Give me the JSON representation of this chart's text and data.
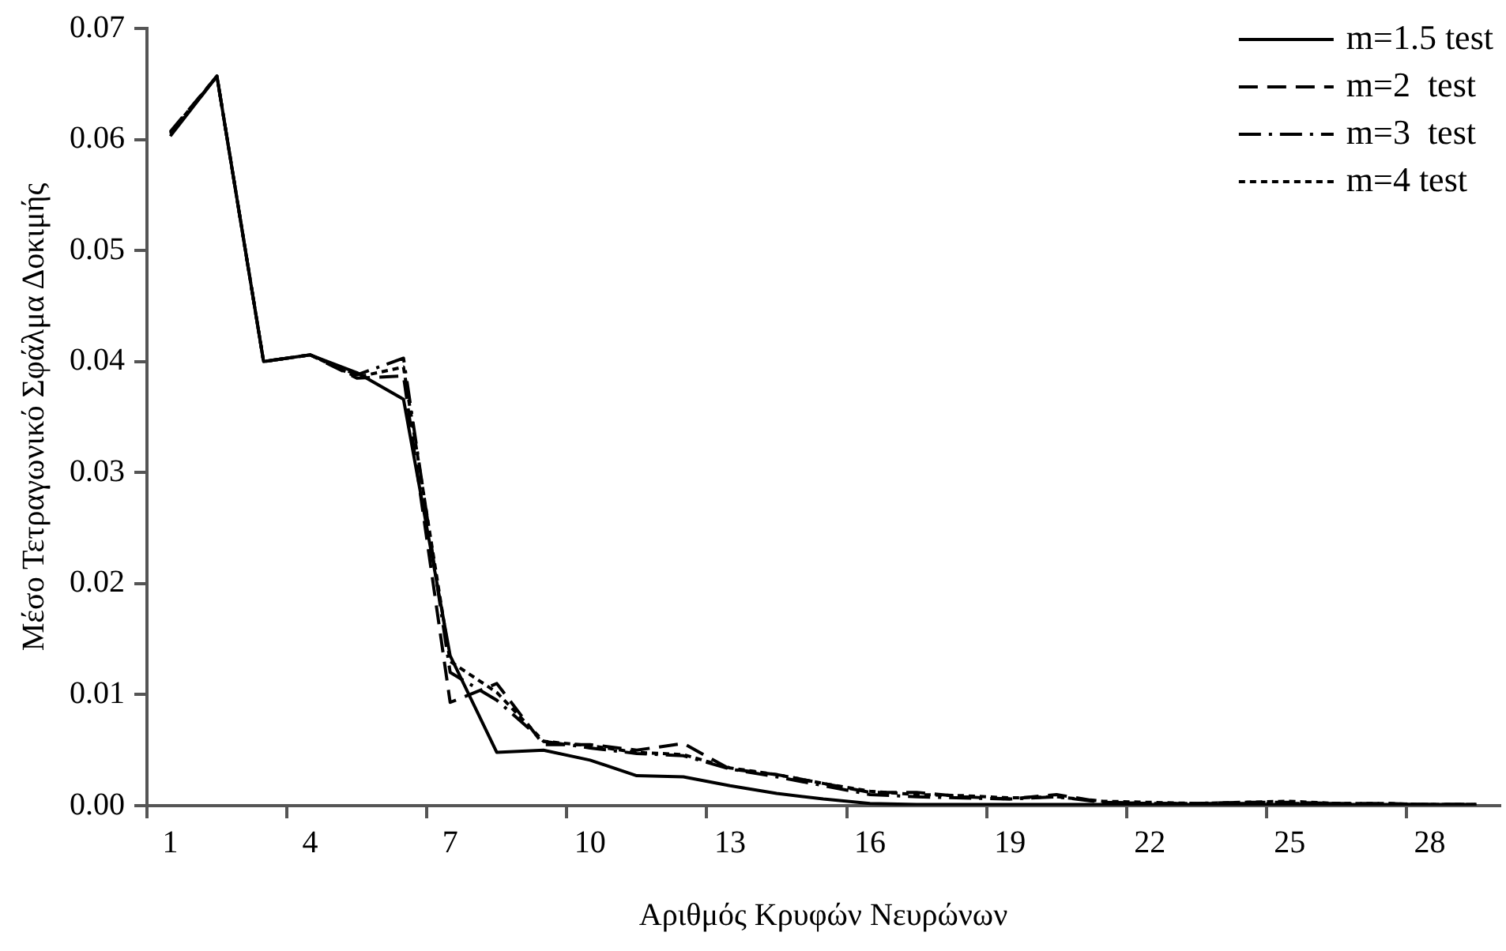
{
  "chart_data": {
    "type": "line",
    "xlabel": "Αριθμός Κρυφών Νευρώνων",
    "ylabel": "Μέσο Τετραγωνικό Σφάλμα Δοκιμής",
    "categories": [
      "1",
      null,
      null,
      "4",
      null,
      null,
      "7",
      null,
      null,
      "10",
      null,
      null,
      "13",
      null,
      null,
      "16",
      null,
      null,
      "19",
      null,
      null,
      "22",
      null,
      null,
      "25",
      null,
      null,
      "28",
      null
    ],
    "series": [
      {
        "name": "m=1.5 test",
        "color": "#000000",
        "line_style": "solid",
        "values": [
          0.0603,
          0.0657,
          0.04,
          0.0406,
          0.039,
          0.0366,
          0.0135,
          0.0048,
          0.005,
          0.0041,
          0.0027,
          0.0026,
          0.0018,
          0.0011,
          0.0006,
          0.0002,
          0.0001,
          0.0001,
          0.0001,
          0.0001,
          0.0001,
          0.0001,
          0.0001,
          0.0001,
          0.0001,
          0.0001,
          0.0001,
          0.0001,
          0.0001
        ]
      },
      {
        "name": "m=2  test",
        "color": "#000000",
        "line_style": "dashed",
        "values": [
          0.0607,
          0.0657,
          0.04,
          0.0406,
          0.0385,
          0.0387,
          0.0093,
          0.011,
          0.0055,
          0.0055,
          0.005,
          0.0056,
          0.0033,
          0.0028,
          0.002,
          0.0012,
          0.0012,
          0.0008,
          0.0006,
          0.001,
          0.0003,
          0.0002,
          0.0002,
          0.0003,
          0.0003,
          0.0002,
          0.0002,
          0.0001,
          0.0001
        ]
      },
      {
        "name": "m=3  test",
        "color": "#000000",
        "line_style": "dashdot",
        "values": [
          0.0605,
          0.0657,
          0.04,
          0.0406,
          0.0388,
          0.0403,
          0.012,
          0.0095,
          0.0058,
          0.0052,
          0.0047,
          0.0045,
          0.0033,
          0.0026,
          0.0018,
          0.001,
          0.0008,
          0.0007,
          0.0006,
          0.0008,
          0.0003,
          0.0002,
          0.0002,
          0.0002,
          0.0002,
          0.0002,
          0.0001,
          0.0001,
          0.0001
        ]
      },
      {
        "name": "m=4 test",
        "color": "#000000",
        "line_style": "dotted",
        "values": [
          0.0606,
          0.0657,
          0.04,
          0.0406,
          0.0386,
          0.0395,
          0.013,
          0.0102,
          0.0058,
          0.0054,
          0.0048,
          0.0046,
          0.0034,
          0.0028,
          0.002,
          0.0013,
          0.001,
          0.0009,
          0.0007,
          0.0008,
          0.0004,
          0.0003,
          0.0002,
          0.0003,
          0.0004,
          0.0002,
          0.0002,
          0.0001,
          0.0001
        ]
      }
    ],
    "ylim": [
      0,
      0.07
    ],
    "yticks": [
      {
        "value": 0,
        "label": "0.00"
      },
      {
        "value": 0.01,
        "label": "0.01"
      },
      {
        "value": 0.02,
        "label": "0.02"
      },
      {
        "value": 0.03,
        "label": "0.03"
      },
      {
        "value": 0.04,
        "label": "0.04"
      },
      {
        "value": 0.05,
        "label": "0.05"
      },
      {
        "value": 0.06,
        "label": "0.06"
      },
      {
        "value": 0.07,
        "label": "0.07"
      }
    ],
    "grid": false,
    "legend": "top right",
    "marker": "none"
  }
}
